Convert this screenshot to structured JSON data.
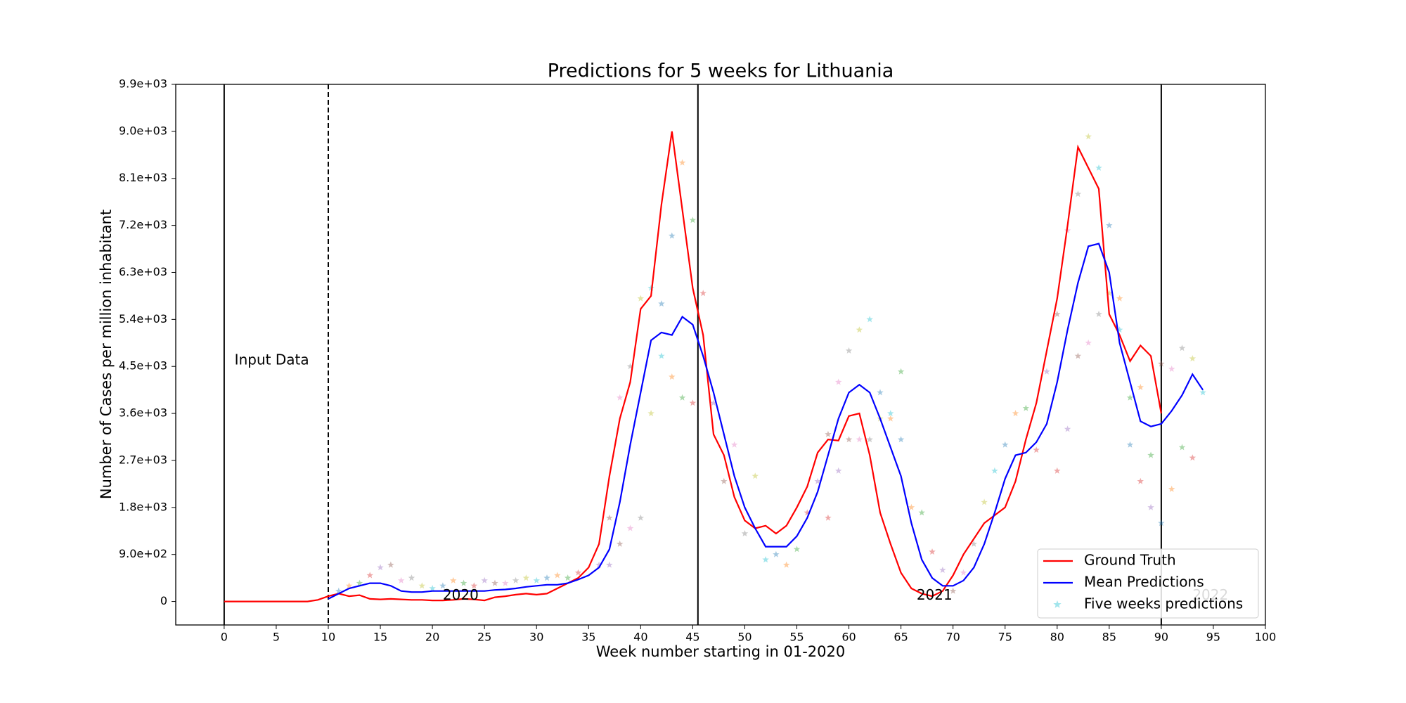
{
  "chart_data": {
    "type": "line",
    "title": "Predictions for 5 weeks for Lithuania",
    "xlabel": "Week number starting in 01-2020",
    "ylabel": "Number of Cases per million inhabitant",
    "xlim": [
      -4.65,
      100
    ],
    "ylim": [
      -450,
      9900
    ],
    "xticks": [
      0,
      5,
      10,
      15,
      20,
      25,
      30,
      35,
      40,
      45,
      50,
      55,
      60,
      65,
      70,
      75,
      80,
      85,
      90,
      95,
      100
    ],
    "yticks": [
      0,
      {
        "value": 900,
        "label": "9.0e+02"
      },
      {
        "value": 1800,
        "label": "1.8e+03"
      },
      {
        "value": 2700,
        "label": "2.7e+03"
      },
      {
        "value": 3600,
        "label": "3.6e+03"
      },
      {
        "value": 4500,
        "label": "4.5e+03"
      },
      {
        "value": 5400,
        "label": "5.4e+03"
      },
      {
        "value": 6300,
        "label": "6.3e+03"
      },
      {
        "value": 7200,
        "label": "7.2e+03"
      },
      {
        "value": 8100,
        "label": "8.1e+03"
      },
      {
        "value": 9000,
        "label": "9.0e+03"
      },
      {
        "value": 9900,
        "label": "9.9e+03"
      }
    ],
    "legend_loc": "lower right",
    "vlines": [
      {
        "x": 0,
        "dashed": false
      },
      {
        "x": 10,
        "dashed": true
      },
      {
        "x": 45.5,
        "dashed": false
      },
      {
        "x": 90,
        "dashed": false
      }
    ],
    "annotations": [
      {
        "text": "Input Data",
        "x": 1,
        "y": 4500,
        "color": "#000000"
      },
      {
        "text": "2020",
        "x": 21,
        "y": 0,
        "color": "#000000"
      },
      {
        "text": "2021",
        "x": 66.5,
        "y": 0,
        "color": "#000000"
      },
      {
        "text": "2022",
        "x": 93,
        "y": 0,
        "color": "#cccccc"
      }
    ],
    "palette": [
      "#1f77b4",
      "#ff7f0e",
      "#2ca02c",
      "#d62728",
      "#9467bd",
      "#8c564b",
      "#e377c2",
      "#7f7f7f",
      "#bcbd22",
      "#17becf"
    ],
    "series": [
      {
        "name": "Ground Truth",
        "color": "#ff0000",
        "kind": "line",
        "x": [
          0,
          1,
          2,
          3,
          4,
          5,
          6,
          7,
          8,
          9,
          10,
          11,
          12,
          13,
          14,
          15,
          16,
          17,
          18,
          19,
          20,
          21,
          22,
          23,
          24,
          25,
          26,
          27,
          28,
          29,
          30,
          31,
          32,
          33,
          34,
          35,
          36,
          37,
          38,
          39,
          40,
          41,
          42,
          43,
          44,
          45,
          46,
          47,
          48,
          49,
          50,
          51,
          52,
          53,
          54,
          55,
          56,
          57,
          58,
          59,
          60,
          61,
          62,
          63,
          64,
          65,
          66,
          67,
          68,
          69,
          70,
          71,
          72,
          73,
          74,
          75,
          76,
          77,
          78,
          79,
          80,
          81,
          82,
          83,
          84,
          85,
          86,
          87,
          88,
          89,
          90
        ],
        "values": [
          0,
          0,
          0,
          0,
          0,
          0,
          0,
          0,
          0,
          30,
          100,
          150,
          100,
          120,
          50,
          40,
          50,
          40,
          30,
          30,
          20,
          20,
          30,
          50,
          40,
          20,
          80,
          100,
          130,
          150,
          130,
          150,
          250,
          350,
          450,
          650,
          1100,
          2400,
          3500,
          4200,
          5600,
          5850,
          7600,
          9000,
          7500,
          6000,
          5100,
          3200,
          2800,
          2000,
          1550,
          1400,
          1450,
          1300,
          1450,
          1800,
          2200,
          2850,
          3100,
          3080,
          3550,
          3600,
          2800,
          1700,
          1100,
          550,
          250,
          150,
          100,
          200,
          500,
          900,
          1200,
          1500,
          1650,
          1800,
          2300,
          3100,
          3800,
          4800,
          5800,
          7200,
          8700,
          8300,
          7900,
          5500,
          5100,
          4600,
          4900,
          4700,
          3600
        ]
      },
      {
        "name": "Mean Predictions",
        "color": "#0000ff",
        "kind": "line",
        "x": [
          10,
          11,
          12,
          13,
          14,
          15,
          16,
          17,
          18,
          19,
          20,
          21,
          22,
          23,
          24,
          25,
          26,
          27,
          28,
          29,
          30,
          31,
          32,
          33,
          34,
          35,
          36,
          37,
          38,
          39,
          40,
          41,
          42,
          43,
          44,
          45,
          46,
          47,
          48,
          49,
          50,
          51,
          52,
          53,
          54,
          55,
          56,
          57,
          58,
          59,
          60,
          61,
          62,
          63,
          64,
          65,
          66,
          67,
          68,
          69,
          70,
          71,
          72,
          73,
          74,
          75,
          76,
          77,
          78,
          79,
          80,
          81,
          82,
          83,
          84,
          85,
          86,
          87,
          88,
          89,
          90,
          91,
          92,
          93,
          94
        ],
        "values": [
          50,
          150,
          250,
          300,
          350,
          350,
          300,
          200,
          180,
          180,
          200,
          200,
          200,
          200,
          200,
          200,
          220,
          230,
          250,
          280,
          300,
          320,
          320,
          350,
          420,
          500,
          650,
          1000,
          1900,
          3000,
          4000,
          5000,
          5150,
          5100,
          5450,
          5300,
          4700,
          4000,
          3200,
          2400,
          1800,
          1400,
          1050,
          1050,
          1050,
          1250,
          1600,
          2100,
          2800,
          3500,
          4000,
          4150,
          4000,
          3500,
          2950,
          2400,
          1500,
          800,
          450,
          300,
          300,
          400,
          650,
          1100,
          1700,
          2350,
          2800,
          2850,
          3050,
          3400,
          4200,
          5200,
          6100,
          6800,
          6850,
          6300,
          4950,
          4200,
          3450,
          3350,
          3400,
          3650,
          3950,
          4350,
          4050
        ]
      },
      {
        "name": "Five weeks predictions",
        "color": "#17becf",
        "kind": "scatter",
        "x": [
          11,
          12,
          13,
          14,
          15,
          16,
          17,
          18,
          19,
          20,
          21,
          22,
          23,
          24,
          25,
          26,
          27,
          28,
          29,
          30,
          31,
          32,
          33,
          34,
          36,
          37,
          38,
          39,
          40,
          41,
          42,
          43,
          44,
          45,
          37,
          38,
          39,
          40,
          41,
          42,
          43,
          44,
          45,
          46,
          47,
          48,
          49,
          50,
          51,
          52,
          53,
          54,
          55,
          56,
          57,
          58,
          59,
          60,
          61,
          62,
          63,
          64,
          65,
          58,
          59,
          60,
          61,
          62,
          63,
          64,
          65,
          66,
          67,
          68,
          69,
          70,
          71,
          72,
          73,
          74,
          75,
          76,
          77,
          78,
          79,
          80,
          81,
          82,
          83,
          84,
          85,
          86,
          87,
          80,
          81,
          82,
          83,
          84,
          85,
          86,
          87,
          88,
          89,
          88,
          89,
          90,
          91,
          92,
          93,
          94,
          90,
          91,
          92,
          93
        ],
        "values": [
          200,
          300,
          350,
          500,
          650,
          700,
          400,
          450,
          300,
          250,
          300,
          400,
          350,
          300,
          400,
          350,
          350,
          400,
          450,
          400,
          450,
          500,
          450,
          550,
          700,
          1600,
          3900,
          4500,
          5800,
          6000,
          5700,
          4300,
          3900,
          3800,
          700,
          1100,
          1400,
          1600,
          3600,
          4700,
          7000,
          8400,
          7300,
          5900,
          3800,
          2300,
          3000,
          1300,
          2400,
          800,
          900,
          700,
          1000,
          1700,
          2300,
          3200,
          4200,
          4800,
          5200,
          5400,
          4000,
          3500,
          4400,
          1600,
          2500,
          3100,
          3100,
          3100,
          3500,
          3600,
          3100,
          1800,
          1700,
          950,
          600,
          200,
          550,
          1100,
          1900,
          2500,
          3000,
          3600,
          3700,
          2900,
          4400,
          5500,
          7100,
          7800,
          8900,
          8300,
          7200,
          5800,
          3900,
          2500,
          3300,
          4700,
          4950,
          5500,
          5900,
          5200,
          3000,
          4100,
          2800,
          2300,
          1800,
          4550,
          4450,
          4850,
          4650,
          4000,
          1500,
          2150,
          2950,
          2750
        ]
      }
    ]
  }
}
